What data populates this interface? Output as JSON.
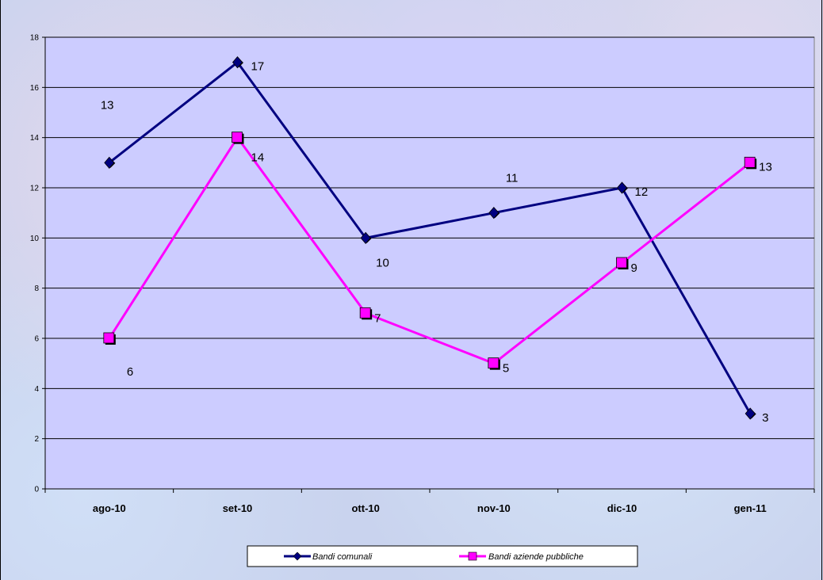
{
  "chart_data": {
    "type": "line",
    "categories": [
      "ago-10",
      "set-10",
      "ott-10",
      "nov-10",
      "dic-10",
      "gen-11"
    ],
    "series": [
      {
        "name": "Bandi comunali",
        "values": [
          13,
          17,
          10,
          11,
          12,
          3
        ],
        "color": "#000080",
        "marker": "diamond"
      },
      {
        "name": "Bandi aziende pubbliche",
        "values": [
          6,
          14,
          7,
          5,
          9,
          13
        ],
        "color": "#ff00ff",
        "marker": "square"
      }
    ],
    "ylim": [
      0,
      18
    ],
    "yticks": [
      "0",
      "2",
      "4",
      "6",
      "8",
      "10",
      "12",
      "14",
      "16",
      "18"
    ],
    "grid": true,
    "legend_position": "bottom",
    "plot_background": "#ccccff",
    "axis_color": "#000000"
  }
}
